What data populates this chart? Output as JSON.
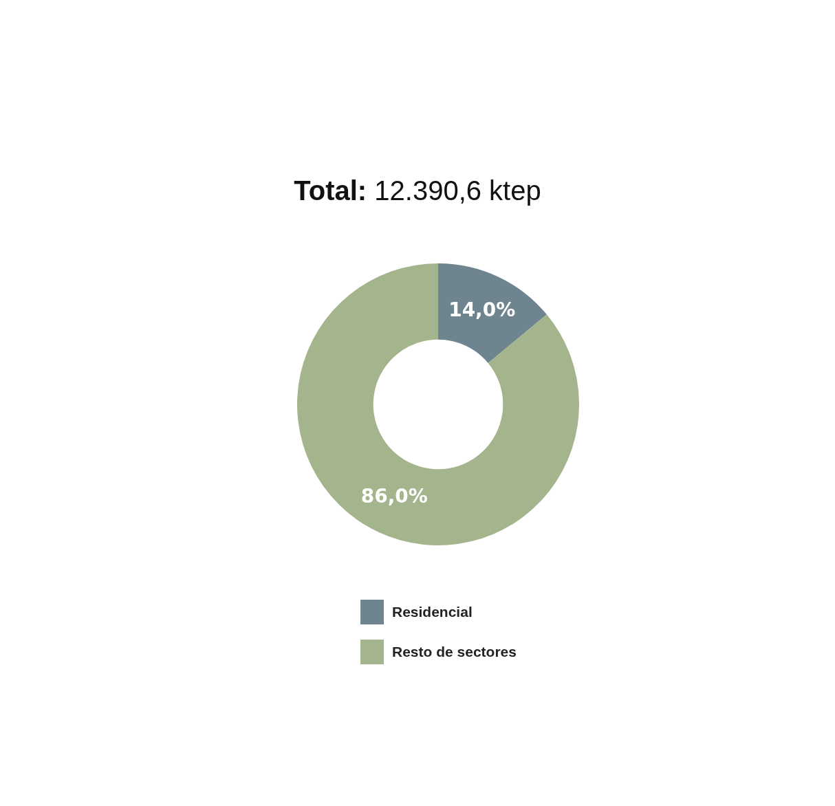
{
  "chart_data": {
    "type": "donut",
    "title": "Total: 12.390,6 ktep",
    "categories": [
      "Residencial",
      "Resto de sectores"
    ],
    "values": [
      14.0,
      86.0
    ],
    "colors": [
      "#6e8590",
      "#a4b48c"
    ],
    "value_labels": [
      "14,0%",
      "86,0%"
    ],
    "legend": "bottom"
  }
}
